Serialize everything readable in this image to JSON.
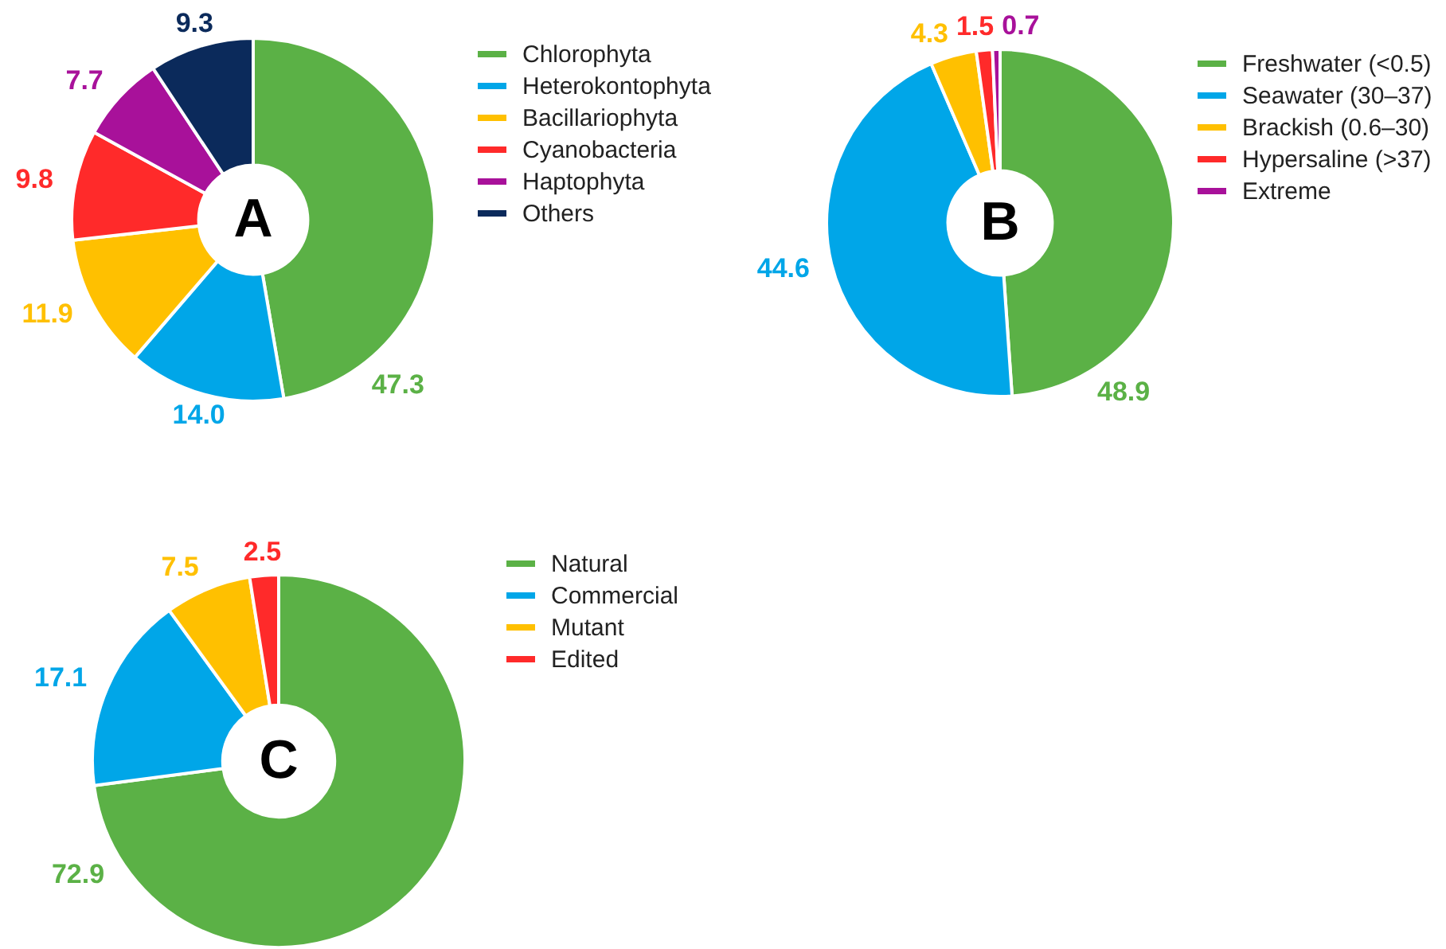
{
  "chart_data": [
    {
      "type": "donut",
      "title": "A",
      "categories": [
        "Chlorophyta",
        "Heterokontophyta",
        "Bacillariophyta",
        "Cyanobacteria",
        "Haptophyta",
        "Others"
      ],
      "values": [
        47.3,
        14.0,
        11.9,
        9.8,
        7.7,
        9.3
      ],
      "value_labels": [
        "47.3",
        "14.0",
        "11.9",
        "9.8",
        "7.7",
        "9.3"
      ],
      "colors": [
        "#5bb146",
        "#00a6e8",
        "#ffc000",
        "#ff2a2a",
        "#a8119a",
        "#0b2a5b"
      ],
      "legend": "top right"
    },
    {
      "type": "donut",
      "title": "B",
      "categories": [
        "Freshwater (<0.5)",
        "Seawater (30–37)",
        "Brackish (0.6–30)",
        "Hypersaline (>37)",
        "Extreme"
      ],
      "values": [
        48.9,
        44.6,
        4.3,
        1.5,
        0.7
      ],
      "value_labels": [
        "48.9",
        "44.6",
        "4.3",
        "1.5",
        "0.7"
      ],
      "colors": [
        "#5bb146",
        "#00a6e8",
        "#ffc000",
        "#ff2a2a",
        "#a8119a"
      ],
      "legend": "top right"
    },
    {
      "type": "donut",
      "title": "C",
      "categories": [
        "Natural",
        "Commercial",
        "Mutant",
        "Edited"
      ],
      "values": [
        72.9,
        17.1,
        7.5,
        2.5
      ],
      "value_labels": [
        "72.9",
        "17.1",
        "7.5",
        "2.5"
      ],
      "colors": [
        "#5bb146",
        "#00a6e8",
        "#ffc000",
        "#ff2a2a"
      ],
      "legend": "top right"
    }
  ]
}
